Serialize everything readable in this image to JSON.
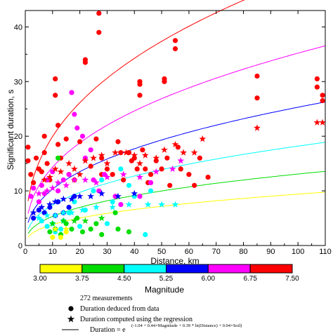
{
  "chart_data": {
    "type": "scatter",
    "xlabel": "Distance, km",
    "ylabel": "Significant duration, s",
    "xlim": [
      0,
      110
    ],
    "ylim": [
      0,
      43
    ],
    "x_ticks": [
      "0",
      "10",
      "20",
      "30",
      "40",
      "50",
      "60",
      "70",
      "80",
      "90",
      "100",
      "110"
    ],
    "y_ticks": [
      "0",
      "10",
      "20",
      "30",
      "40"
    ],
    "colorbar": {
      "title": "Magnitude",
      "labels": [
        "3.00",
        "3.75",
        "4.50",
        "5.25",
        "6.00",
        "6.75",
        "7.50"
      ],
      "colors": [
        "#ffff00",
        "#00dd00",
        "#00ffff",
        "#0000ff",
        "#ff00ff",
        "#ff0000"
      ]
    },
    "legend": {
      "count_text": "272 measurements",
      "data_text": "Duration deduced from data",
      "regression_text": "Duration computed using the regression",
      "formula_text": "Duration = e",
      "exponent_text": "(-1.04 + 0.44×Magnitude + 0.39 * ln(Distance) + 0.04×Soil)"
    },
    "curves": [
      {
        "magnitude": 3.375,
        "color": "#ffff00"
      },
      {
        "magnitude": 4.125,
        "color": "#00dd00"
      },
      {
        "magnitude": 4.875,
        "color": "#00ffff"
      },
      {
        "magnitude": 5.625,
        "color": "#0000ff"
      },
      {
        "magnitude": 6.375,
        "color": "#ff00ff"
      },
      {
        "magnitude": 7.125,
        "color": "#ff0000"
      }
    ],
    "series": [
      {
        "marker": "circle",
        "color": "#ff0000",
        "points": [
          [
            1,
            18
          ],
          [
            1,
            15.5
          ],
          [
            2,
            13
          ],
          [
            3,
            11.5
          ],
          [
            4,
            16
          ],
          [
            5,
            14
          ],
          [
            6,
            13.5
          ],
          [
            7,
            20
          ],
          [
            7,
            17
          ],
          [
            8,
            15
          ],
          [
            9,
            12
          ],
          [
            11,
            30.5
          ],
          [
            11,
            27.5
          ],
          [
            12,
            22
          ],
          [
            12,
            18.5
          ],
          [
            13,
            16
          ],
          [
            15,
            19.5
          ],
          [
            16,
            13
          ],
          [
            18,
            12
          ],
          [
            20,
            19
          ],
          [
            22,
            34
          ],
          [
            22,
            33.5
          ],
          [
            24,
            14.5
          ],
          [
            26,
            19.5
          ],
          [
            27,
            42.5
          ],
          [
            27,
            39
          ],
          [
            28,
            16
          ],
          [
            28,
            13
          ],
          [
            30,
            14
          ],
          [
            32,
            13
          ],
          [
            34,
            19
          ],
          [
            35,
            17
          ],
          [
            36,
            12
          ],
          [
            38,
            17
          ],
          [
            39,
            15.5
          ],
          [
            40,
            16
          ],
          [
            41,
            14
          ],
          [
            42,
            30
          ],
          [
            42,
            29.5
          ],
          [
            42,
            27.5
          ],
          [
            43,
            17.5
          ],
          [
            44,
            14
          ],
          [
            45,
            11.5
          ],
          [
            46,
            13
          ],
          [
            48,
            15.5
          ],
          [
            50,
            14
          ],
          [
            51,
            30.5
          ],
          [
            51,
            30
          ],
          [
            52,
            16
          ],
          [
            53,
            11
          ],
          [
            55,
            37.5
          ],
          [
            55,
            36
          ],
          [
            56,
            18
          ],
          [
            57,
            14
          ],
          [
            60,
            13
          ],
          [
            62,
            11
          ],
          [
            64,
            16
          ],
          [
            67,
            12.5
          ],
          [
            85,
            31
          ],
          [
            85,
            27
          ],
          [
            107,
            30.5
          ],
          [
            107,
            29
          ],
          [
            109,
            27.5
          ],
          [
            109,
            26.5
          ]
        ]
      },
      {
        "marker": "circle",
        "color": "#ff00ff",
        "points": [
          [
            2,
            9
          ],
          [
            3,
            10.5
          ],
          [
            5,
            8
          ],
          [
            6,
            11
          ],
          [
            7,
            9.5
          ],
          [
            8,
            12
          ],
          [
            10,
            13.5
          ],
          [
            12,
            10
          ],
          [
            14,
            12
          ],
          [
            16,
            13
          ],
          [
            17,
            28
          ],
          [
            18,
            24
          ],
          [
            19,
            21.5
          ],
          [
            21,
            20
          ],
          [
            22,
            16
          ],
          [
            24,
            17.5
          ],
          [
            25,
            12
          ],
          [
            27,
            10
          ],
          [
            29,
            13
          ],
          [
            33,
            9
          ],
          [
            35,
            7.5
          ],
          [
            42,
            9
          ],
          [
            46,
            11.5
          ]
        ]
      },
      {
        "marker": "circle",
        "color": "#0000ff",
        "points": [
          [
            3,
            5
          ],
          [
            5,
            6.5
          ],
          [
            7,
            6
          ],
          [
            9,
            7
          ],
          [
            11,
            5.5
          ],
          [
            12,
            8
          ],
          [
            14,
            6
          ],
          [
            16,
            7
          ],
          [
            18,
            9
          ]
        ]
      },
      {
        "marker": "circle",
        "color": "#00ffff",
        "points": [
          [
            6,
            4.5
          ],
          [
            8,
            3.5
          ],
          [
            10,
            4
          ],
          [
            11,
            2.5
          ],
          [
            13,
            3
          ],
          [
            14,
            4.5
          ],
          [
            16,
            6
          ],
          [
            18,
            8
          ],
          [
            20,
            3.5
          ],
          [
            22,
            6.5
          ],
          [
            25,
            10
          ],
          [
            28,
            12
          ],
          [
            30,
            4
          ],
          [
            32,
            8
          ],
          [
            35,
            14
          ],
          [
            38,
            11
          ],
          [
            40,
            9
          ],
          [
            44,
            2
          ],
          [
            46,
            10
          ]
        ]
      },
      {
        "marker": "circle",
        "color": "#00dd00",
        "points": [
          [
            9,
            2.5
          ],
          [
            11,
            3
          ],
          [
            12,
            16
          ],
          [
            13,
            2
          ],
          [
            15,
            4
          ],
          [
            17,
            3
          ],
          [
            19,
            5
          ],
          [
            21,
            2.5
          ],
          [
            24,
            3
          ],
          [
            26,
            4
          ],
          [
            28,
            2
          ],
          [
            33,
            6
          ],
          [
            34,
            3
          ],
          [
            38,
            2.5
          ]
        ]
      },
      {
        "marker": "circle",
        "color": "#ffff00",
        "points": [
          [
            10,
            1.5
          ],
          [
            13,
            1.5
          ],
          [
            15,
            2.5
          ]
        ]
      },
      {
        "marker": "star",
        "color": "#ff0000",
        "points": [
          [
            7,
            12
          ],
          [
            9,
            12.5
          ],
          [
            11,
            14
          ],
          [
            13,
            13.5
          ],
          [
            16,
            15
          ],
          [
            18,
            14
          ],
          [
            20,
            13
          ],
          [
            22,
            15.5
          ],
          [
            25,
            16
          ],
          [
            28,
            16.5
          ],
          [
            30,
            15
          ],
          [
            33,
            17
          ],
          [
            37,
            17
          ],
          [
            40,
            16.5
          ],
          [
            42,
            15
          ],
          [
            44,
            16.5
          ],
          [
            48,
            16
          ],
          [
            51,
            17.5
          ],
          [
            55,
            18.5
          ],
          [
            58,
            17
          ],
          [
            62,
            17
          ],
          [
            65,
            19.5
          ],
          [
            85,
            21.5
          ],
          [
            107,
            22.5
          ],
          [
            109,
            22.5
          ]
        ]
      },
      {
        "marker": "star",
        "color": "#ff00ff",
        "points": [
          [
            5,
            9.5
          ],
          [
            8,
            10
          ],
          [
            10,
            10.5
          ],
          [
            12,
            11.5
          ],
          [
            15,
            11
          ],
          [
            18,
            12
          ],
          [
            22,
            12
          ],
          [
            26,
            11.5
          ],
          [
            30,
            12.5
          ],
          [
            36,
            13
          ],
          [
            42,
            12.5
          ],
          [
            48,
            13.5
          ],
          [
            54,
            14
          ],
          [
            57,
            15.5
          ]
        ]
      },
      {
        "marker": "star",
        "color": "#0000ff",
        "points": [
          [
            3,
            6
          ],
          [
            6,
            7
          ],
          [
            9,
            7.5
          ],
          [
            11,
            8
          ],
          [
            14,
            8.5
          ],
          [
            17,
            8.5
          ],
          [
            20,
            9
          ],
          [
            24,
            9
          ],
          [
            28,
            9.5
          ],
          [
            34,
            9
          ],
          [
            40,
            9.5
          ]
        ]
      },
      {
        "marker": "star",
        "color": "#00ffff",
        "points": [
          [
            5,
            5
          ],
          [
            8,
            5.5
          ],
          [
            11,
            5.5
          ],
          [
            14,
            6
          ],
          [
            17,
            6
          ],
          [
            21,
            6.5
          ],
          [
            26,
            7
          ],
          [
            32,
            7
          ],
          [
            38,
            7.5
          ],
          [
            45,
            7.5
          ],
          [
            50,
            7.5
          ],
          [
            55,
            7.5
          ]
        ]
      },
      {
        "marker": "star",
        "color": "#00dd00",
        "points": [
          [
            10,
            4
          ],
          [
            14,
            4.5
          ],
          [
            18,
            4.5
          ],
          [
            22,
            4.5
          ],
          [
            28,
            5
          ]
        ]
      },
      {
        "marker": "star",
        "color": "#ffff00",
        "points": [
          [
            11,
            3
          ],
          [
            15,
            3
          ]
        ]
      }
    ]
  }
}
